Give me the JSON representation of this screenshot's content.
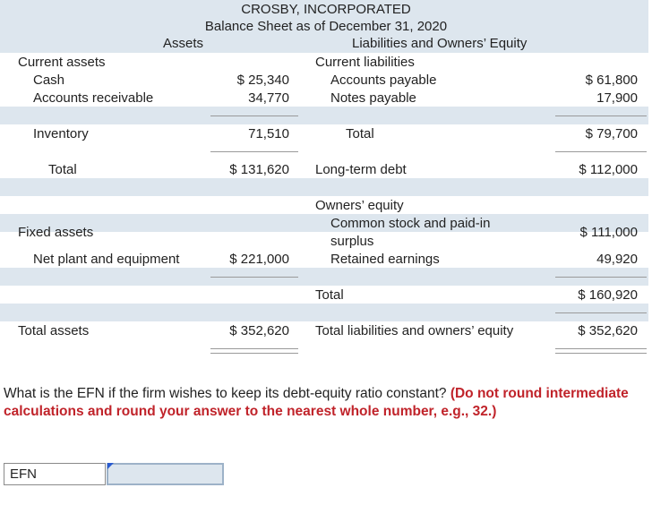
{
  "header": {
    "company": "CROSBY, INCORPORATED",
    "subtitle": "Balance Sheet as of December 31, 2020",
    "assets_heading": "Assets",
    "liabilities_heading": "Liabilities and Owners’ Equity"
  },
  "assets": {
    "current_label": "Current assets",
    "cash_label": "Cash",
    "cash_value": "$ 25,340",
    "ar_label": "Accounts receivable",
    "ar_value": "34,770",
    "inventory_label": "Inventory",
    "inventory_value": "71,510",
    "total_label": "Total",
    "total_value": "$ 131,620",
    "fixed_label": "Fixed assets",
    "npe_label": "Net plant and equipment",
    "npe_value": "$ 221,000",
    "total_assets_label": "Total assets",
    "total_assets_value": "$ 352,620"
  },
  "liabilities": {
    "current_label": "Current liabilities",
    "ap_label": "Accounts payable",
    "ap_value": "$ 61,800",
    "np_label": "Notes payable",
    "np_value": "17,900",
    "total_label": "Total",
    "total_value": "$ 79,700",
    "ltd_label": "Long-term debt",
    "ltd_value": "$ 112,000",
    "oe_label": "Owners’ equity",
    "cs_label_1": "Common stock and paid-in",
    "cs_label_2": "surplus",
    "cs_value": "$ 111,000",
    "re_label": "Retained earnings",
    "re_value": "49,920",
    "oe_total_label": "Total",
    "oe_total_value": "$ 160,920",
    "tloe_label": "Total liabilities and owners’ equity",
    "tloe_value": "$ 352,620"
  },
  "question": {
    "text": "What is the EFN if the firm wishes to keep its debt-equity ratio constant? ",
    "instruction": "(Do not round intermediate calculations and round your answer to the nearest whole number, e.g., 32.)"
  },
  "answer": {
    "label": "EFN",
    "value": ""
  }
}
